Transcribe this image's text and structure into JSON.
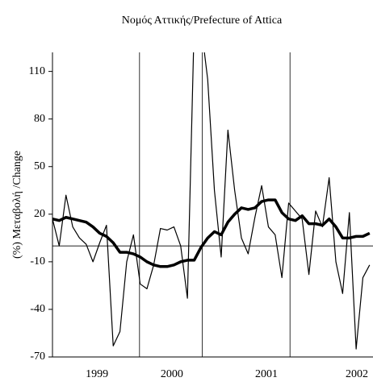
{
  "chart_data": {
    "type": "line",
    "title": "Νομός Αττικής/Prefecture of Attica",
    "y_label": "(%) Μεταβολή /Change",
    "x": [
      1,
      2,
      3,
      4,
      5,
      6,
      7,
      8,
      9,
      10,
      11,
      12,
      13,
      14,
      15,
      16,
      17,
      18,
      19,
      20,
      21,
      22,
      23,
      24,
      25,
      26,
      27,
      28,
      29,
      30,
      31,
      32,
      33,
      34,
      35,
      36,
      37,
      38,
      39,
      40,
      41,
      42,
      43,
      44,
      45,
      46,
      47,
      48
    ],
    "series": [
      {
        "color": "#000000",
        "width": 1.2,
        "values": [
          17,
          0,
          32,
          12,
          5,
          1,
          -10,
          2,
          13,
          -63,
          -54,
          -10,
          7,
          -24,
          -27,
          -12,
          11,
          10,
          12,
          0,
          -33,
          140,
          140,
          105,
          35,
          -7,
          73,
          35,
          5,
          -5,
          18,
          38,
          12,
          7,
          -20,
          27,
          22,
          17,
          -18,
          22,
          12,
          43,
          -10,
          -30,
          21,
          -65,
          -20,
          -12
        ]
      },
      {
        "color": "#000000",
        "width": 3.5,
        "values": [
          17,
          16,
          18,
          17,
          16,
          15,
          12,
          8,
          6,
          2,
          -4,
          -4,
          -5,
          -7,
          -10,
          -12,
          -13,
          -13,
          -12,
          -10,
          -9,
          -9,
          -1,
          5,
          9,
          7,
          15,
          20,
          24,
          23,
          24,
          28,
          29,
          29,
          21,
          17,
          16,
          19,
          14,
          14,
          13,
          17,
          12,
          5,
          5,
          6,
          6,
          8
        ]
      }
    ],
    "xlim": [
      1,
      48.5
    ],
    "ylim": [
      -70,
      122
    ],
    "yticks": [
      -70,
      -40,
      -10,
      20,
      50,
      80,
      110
    ],
    "hline": 0,
    "year_dividers": [
      13.9,
      23.2,
      36.2
    ],
    "year_labels": [
      {
        "value": 7.6,
        "label": "1999"
      },
      {
        "value": 18.7,
        "label": "2000"
      },
      {
        "value": 32.7,
        "label": "2001"
      },
      {
        "value": 46.1,
        "label": "2002"
      }
    ]
  }
}
